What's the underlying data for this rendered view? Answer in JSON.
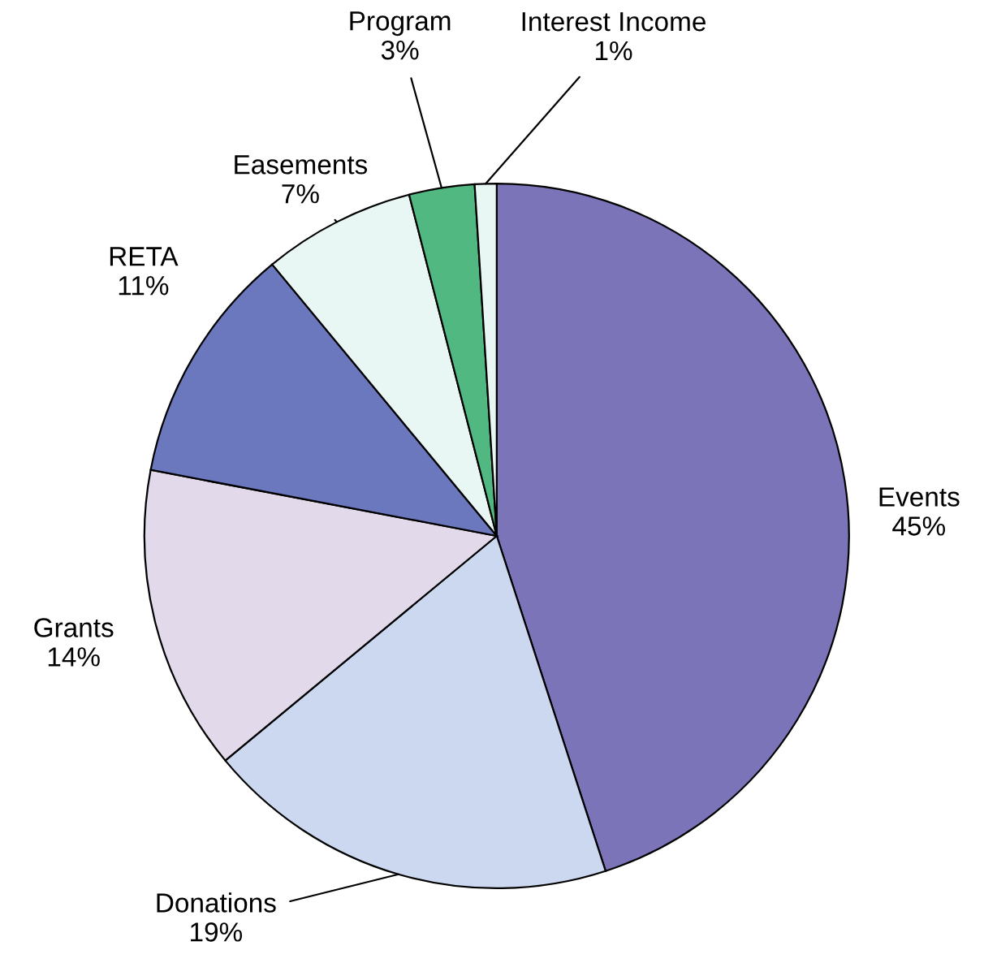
{
  "chart_data": {
    "type": "pie",
    "categories": [
      "Events",
      "Donations",
      "Grants",
      "RETA",
      "Easements",
      "Program",
      "Interest Income"
    ],
    "values": [
      45,
      19,
      14,
      11,
      7,
      3,
      1
    ],
    "value_labels": [
      "45%",
      "19%",
      "14%",
      "11%",
      "7%",
      "3%",
      "1%"
    ],
    "colors": [
      "#7b74b8",
      "#ccd8f0",
      "#e2daea",
      "#6b78be",
      "#e8f6f4",
      "#52b882",
      "#e8f6f4"
    ],
    "legend": false
  }
}
